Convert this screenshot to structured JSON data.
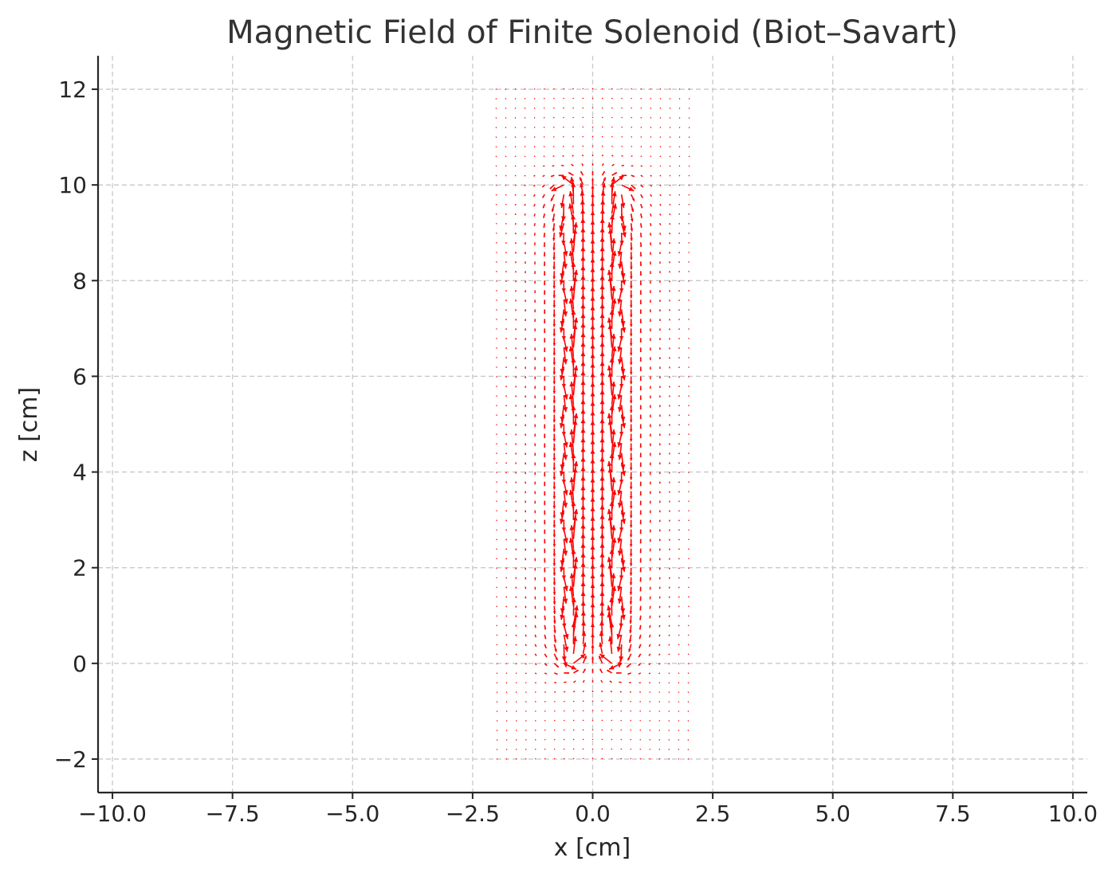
{
  "chart_data": {
    "type": "quiver",
    "title": "Magnetic Field of Finite Solenoid (Biot–Savart)",
    "xlabel": "x [cm]",
    "ylabel": "z [cm]",
    "xlim": [
      -10.3,
      10.3
    ],
    "ylim": [
      -2.7,
      12.7
    ],
    "xticks": [
      -10.0,
      -7.5,
      -5.0,
      -2.5,
      0.0,
      2.5,
      5.0,
      7.5,
      10.0
    ],
    "xtick_labels": [
      "−10.0",
      "−7.5",
      "−5.0",
      "−2.5",
      "0.0",
      "2.5",
      "5.0",
      "7.5",
      "10.0"
    ],
    "yticks": [
      -2,
      0,
      2,
      4,
      6,
      8,
      10,
      12
    ],
    "ytick_labels": [
      "−2",
      "0",
      "2",
      "4",
      "6",
      "8",
      "10",
      "12"
    ],
    "grid": true,
    "arrow_color": "#ff0000",
    "field_grid": {
      "x_range": [
        -2,
        2
      ],
      "z_range": [
        -2,
        12
      ],
      "nx": 21,
      "nz": 71
    },
    "solenoid": {
      "radius_cm": 0.5,
      "z_start_cm": 0,
      "z_end_cm": 10
    }
  }
}
